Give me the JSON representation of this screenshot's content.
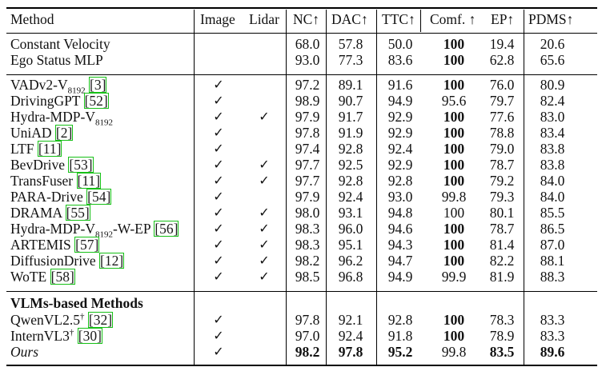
{
  "header": {
    "method": "Method",
    "image": "Image",
    "lidar": "Lidar",
    "nc": "NC↑",
    "dac": "DAC↑",
    "ttc": "TTC↑",
    "comf": "Comf. ↑",
    "ep": "EP↑",
    "pdms": "PDMS↑"
  },
  "section_vlm_label": "VLMs-based Methods",
  "check_symbol": "✓",
  "rows": [
    {
      "method": "Constant Velocity",
      "image": false,
      "lidar": false,
      "nc": "68.0",
      "dac": "57.8",
      "ttc": "50.0",
      "comf": "100",
      "ep": "19.4",
      "pdms": "20.6",
      "bold": [
        "comf"
      ]
    },
    {
      "method": "Ego Status MLP",
      "image": false,
      "lidar": false,
      "nc": "93.0",
      "dac": "77.3",
      "ttc": "83.6",
      "comf": "100",
      "ep": "62.8",
      "pdms": "65.6",
      "bold": [
        "comf"
      ]
    },
    {
      "method": "VADv2-V",
      "sub": "8192",
      "cite": "3",
      "image": true,
      "lidar": false,
      "nc": "97.2",
      "dac": "89.1",
      "ttc": "91.6",
      "comf": "100",
      "ep": "76.0",
      "pdms": "80.9",
      "bold": [
        "comf"
      ]
    },
    {
      "method": "DrivingGPT",
      "cite": "52",
      "image": true,
      "lidar": false,
      "nc": "98.9",
      "dac": "90.7",
      "ttc": "94.9",
      "comf": "95.6",
      "ep": "79.7",
      "pdms": "82.4",
      "bold": []
    },
    {
      "method": "Hydra-MDP-V",
      "sub": "8192",
      "image": true,
      "lidar": true,
      "nc": "97.9",
      "dac": "91.7",
      "ttc": "92.9",
      "comf": "100",
      "ep": "77.6",
      "pdms": "83.0",
      "bold": [
        "comf"
      ]
    },
    {
      "method": "UniAD",
      "cite": "2",
      "image": true,
      "lidar": false,
      "nc": "97.8",
      "dac": "91.9",
      "ttc": "92.9",
      "comf": "100",
      "ep": "78.8",
      "pdms": "83.4",
      "bold": [
        "comf"
      ]
    },
    {
      "method": "LTF",
      "cite": "11",
      "image": true,
      "lidar": false,
      "nc": "97.4",
      "dac": "92.8",
      "ttc": "92.4",
      "comf": "100",
      "ep": "79.0",
      "pdms": "83.8",
      "bold": [
        "comf"
      ]
    },
    {
      "method": "BevDrive",
      "cite": "53",
      "image": true,
      "lidar": true,
      "nc": "97.7",
      "dac": "92.5",
      "ttc": "92.9",
      "comf": "100",
      "ep": "78.7",
      "pdms": "83.8",
      "bold": [
        "comf"
      ]
    },
    {
      "method": "TransFuser",
      "cite": "11",
      "image": true,
      "lidar": true,
      "nc": "97.7",
      "dac": "92.8",
      "ttc": "92.8",
      "comf": "100",
      "ep": "79.2",
      "pdms": "84.0",
      "bold": [
        "comf"
      ]
    },
    {
      "method": "PARA-Drive",
      "cite": "54",
      "image": true,
      "lidar": false,
      "nc": "97.9",
      "dac": "92.4",
      "ttc": "93.0",
      "comf": "99.8",
      "ep": "79.3",
      "pdms": "84.0",
      "bold": []
    },
    {
      "method": "DRAMA",
      "cite": "55",
      "image": true,
      "lidar": true,
      "nc": "98.0",
      "dac": "93.1",
      "ttc": "94.8",
      "comf": "100",
      "ep": "80.1",
      "pdms": "85.5",
      "bold": []
    },
    {
      "method": "Hydra-MDP-V",
      "sub": "8192",
      "tail": "-W-EP",
      "cite": "56",
      "image": true,
      "lidar": true,
      "nc": "98.3",
      "dac": "96.0",
      "ttc": "94.6",
      "comf": "100",
      "ep": "78.7",
      "pdms": "86.5",
      "bold": [
        "comf"
      ]
    },
    {
      "method": "ARTEMIS",
      "cite": "57",
      "image": true,
      "lidar": true,
      "nc": "98.3",
      "dac": "95.1",
      "ttc": "94.3",
      "comf": "100",
      "ep": "81.4",
      "pdms": "87.0",
      "bold": [
        "comf"
      ]
    },
    {
      "method": "DiffusionDrive",
      "cite": "12",
      "image": true,
      "lidar": true,
      "nc": "98.2",
      "dac": "96.2",
      "ttc": "94.7",
      "comf": "100",
      "ep": "82.2",
      "pdms": "88.1",
      "bold": [
        "comf"
      ]
    },
    {
      "method": "WoTE",
      "cite": "58",
      "image": true,
      "lidar": true,
      "nc": "98.5",
      "dac": "96.8",
      "ttc": "94.9",
      "comf": "99.9",
      "ep": "81.9",
      "pdms": "88.3",
      "bold": []
    },
    {
      "method": "QwenVL2.5",
      "sup": "†",
      "cite": "32",
      "image": true,
      "lidar": false,
      "nc": "97.8",
      "dac": "92.1",
      "ttc": "92.8",
      "comf": "100",
      "ep": "78.3",
      "pdms": "83.3",
      "bold": [
        "comf"
      ]
    },
    {
      "method": "InternVL3",
      "sup": "†",
      "cite": "30",
      "image": true,
      "lidar": false,
      "nc": "97.0",
      "dac": "92.4",
      "ttc": "91.8",
      "comf": "100",
      "ep": "78.9",
      "pdms": "83.3",
      "bold": [
        "comf"
      ]
    },
    {
      "method": "Ours",
      "italic": true,
      "image": true,
      "lidar": false,
      "nc": "98.2",
      "dac": "97.8",
      "ttc": "95.2",
      "comf": "99.8",
      "ep": "83.5",
      "pdms": "89.6",
      "bold": [
        "nc",
        "dac",
        "ttc",
        "ep",
        "pdms"
      ]
    }
  ]
}
